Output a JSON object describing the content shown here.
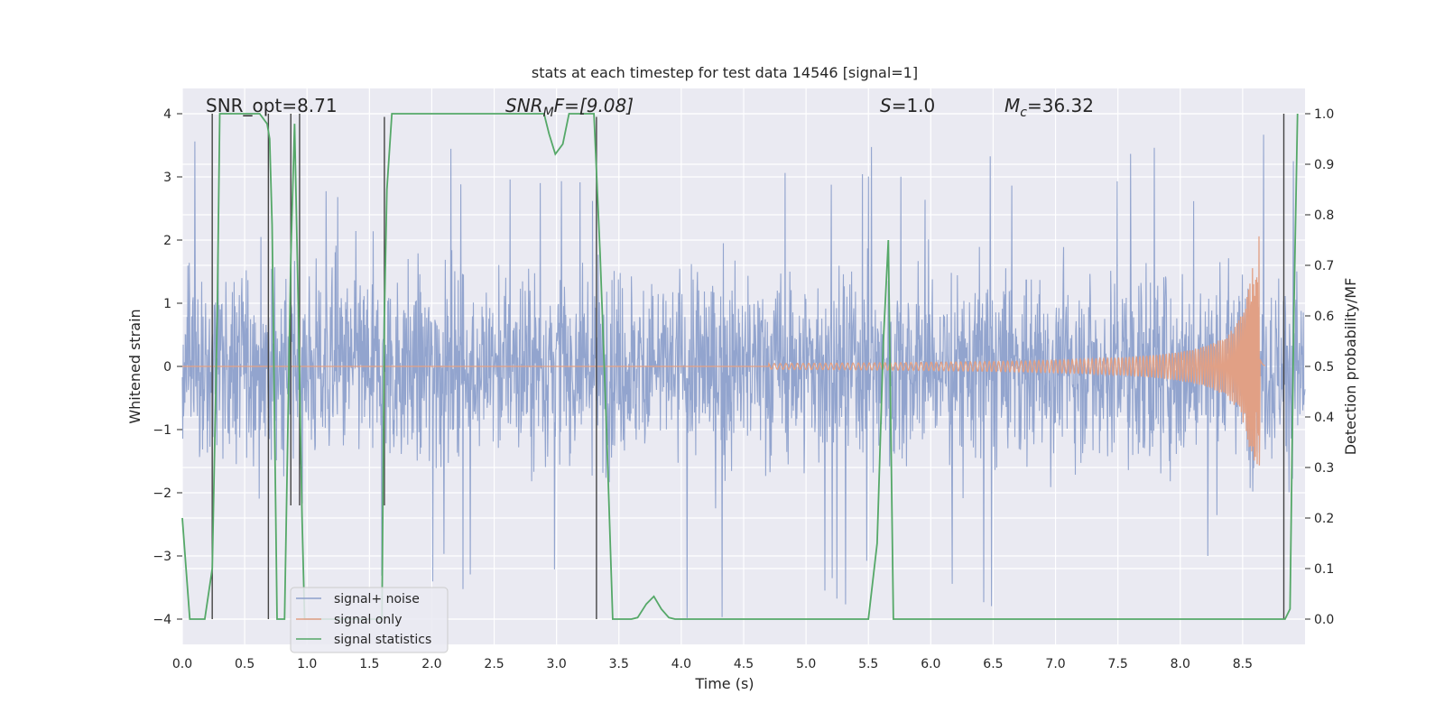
{
  "chart_data": {
    "type": "line",
    "title": "stats at each timestep for test data 14546 [signal=1]",
    "xlabel": "Time (s)",
    "ylabel_left": "Whitened strain",
    "ylabel_right": "Detection probability/MF",
    "xlim": [
      0.0,
      9.0
    ],
    "ylim_left": [
      -4.4,
      4.4
    ],
    "ylim_right": [
      -0.05,
      1.05
    ],
    "xticks": [
      "0.0",
      "0.5",
      "1.0",
      "1.5",
      "2.0",
      "2.5",
      "3.0",
      "3.5",
      "4.0",
      "4.5",
      "5.0",
      "5.5",
      "6.0",
      "6.5",
      "7.0",
      "7.5",
      "8.0",
      "8.5"
    ],
    "xtick_values": [
      0.0,
      0.5,
      1.0,
      1.5,
      2.0,
      2.5,
      3.0,
      3.5,
      4.0,
      4.5,
      5.0,
      5.5,
      6.0,
      6.5,
      7.0,
      7.5,
      8.0,
      8.5
    ],
    "yticks_left": [
      "4",
      "3",
      "2",
      "1",
      "0",
      "−1",
      "−2",
      "−3",
      "−4"
    ],
    "ytick_left_values": [
      4,
      3,
      2,
      1,
      0,
      -1,
      -2,
      -3,
      -4
    ],
    "yticks_right": [
      "1.0",
      "0.9",
      "0.8",
      "0.7",
      "0.6",
      "0.5",
      "0.4",
      "0.3",
      "0.2",
      "0.1",
      "0.0"
    ],
    "ytick_right_values": [
      1.0,
      0.9,
      0.8,
      0.7,
      0.6,
      0.5,
      0.4,
      0.3,
      0.2,
      0.1,
      0.0
    ],
    "annotations": {
      "snr_opt": "SNR_opt=8.71",
      "snr_mf_base": "SNR",
      "snr_mf_sub": "M",
      "snr_mf_rest": "F=[9.08]",
      "s_base": "S",
      "s_rest": "=1.0",
      "mc_base": "M",
      "mc_sub": "c",
      "mc_rest": "=36.32"
    },
    "legend": {
      "position": "lower-left",
      "entries": [
        "signal+ noise",
        "signal only",
        "signal statistics"
      ]
    },
    "series": [
      {
        "name": "signal+ noise",
        "color": "#8da0cb",
        "description": "whitened noisy strain, approx band ±2 with spikes to ±4",
        "amplitude_band": [
          -2.0,
          2.0
        ],
        "spike_extremes": [
          -4.0,
          3.9
        ],
        "t_range": [
          0.0,
          9.0
        ]
      },
      {
        "name": "signal only",
        "color": "#e1a085",
        "description": "chirp waveform near zero, growing to peak ~2.3 at merger",
        "merger_time": 8.63,
        "peak_amplitude": 2.3,
        "onset_time": 4.7
      },
      {
        "name": "signal statistics",
        "color": "#55a868",
        "axis": "right",
        "t": [
          0.0,
          0.06,
          0.1,
          0.18,
          0.24,
          0.28,
          0.3,
          0.33,
          0.38,
          0.5,
          0.62,
          0.68,
          0.7,
          0.72,
          0.76,
          0.82,
          0.87,
          0.9,
          0.93,
          0.96,
          0.98,
          1.0,
          1.6,
          1.62,
          1.64,
          1.68,
          1.75,
          2.0,
          2.5,
          2.9,
          2.94,
          2.99,
          3.05,
          3.1,
          3.2,
          3.3,
          3.35,
          3.4,
          3.45,
          3.5,
          3.6,
          3.65,
          3.72,
          3.78,
          3.84,
          3.9,
          3.95,
          4.0,
          4.5,
          5.0,
          5.5,
          5.57,
          5.62,
          5.66,
          5.7,
          5.74,
          5.8,
          6.0,
          7.0,
          8.0,
          8.6,
          8.8,
          8.84,
          8.88,
          8.91,
          8.94
        ],
        "values": [
          0.2,
          0.0,
          0.0,
          0.0,
          0.1,
          0.6,
          1.0,
          1.0,
          1.0,
          1.0,
          1.0,
          0.98,
          0.95,
          0.78,
          0.0,
          0.0,
          0.72,
          0.98,
          0.62,
          0.2,
          0.0,
          0.0,
          0.0,
          0.6,
          0.85,
          1.0,
          1.0,
          1.0,
          1.0,
          1.0,
          0.96,
          0.92,
          0.94,
          1.0,
          1.0,
          1.0,
          0.72,
          0.38,
          0.0,
          0.0,
          0.0,
          0.003,
          0.03,
          0.045,
          0.02,
          0.003,
          0.0,
          0.0,
          0.0,
          0.0,
          0.0,
          0.15,
          0.55,
          0.75,
          0.0,
          0.0,
          0.0,
          0.0,
          0.0,
          0.0,
          0.0,
          0.0,
          0.0,
          0.02,
          0.6,
          1.0
        ]
      }
    ],
    "vertical_markers": {
      "color": "#444444",
      "t": [
        0.24,
        0.69,
        0.87,
        0.94,
        1.62,
        3.32,
        8.83
      ],
      "top_values": [
        4.0,
        4.0,
        4.0,
        4.0,
        3.95,
        3.95,
        4.0
      ],
      "bottom_values": [
        -4.0,
        -4.0,
        -2.2,
        -2.2,
        -2.2,
        -4.0,
        -4.0
      ]
    }
  }
}
